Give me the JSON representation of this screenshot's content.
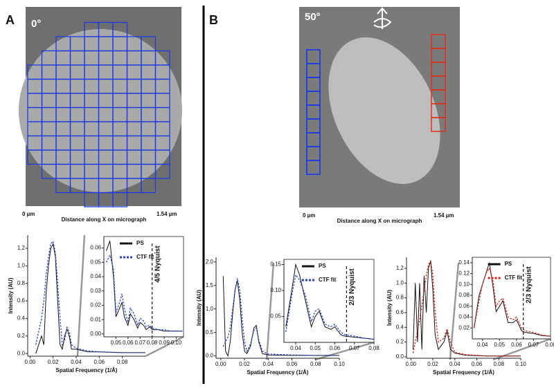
{
  "panels": [
    {
      "label": "A",
      "angle": "0°",
      "x_start": "0 µm",
      "x_end": "1.54 µm",
      "x_label": "Distance along X on micrograph"
    },
    {
      "label": "B",
      "angle": "50°",
      "x_start": "0 µm",
      "x_end": "1.54 µm",
      "x_label": "Distance along X on micrograph"
    }
  ],
  "chart_data": [
    {
      "type": "line",
      "xlabel": "Spatial Frequency (1/Å)",
      "ylabel": "Intensity (AU)",
      "x": [
        0.005,
        0.01,
        0.012,
        0.014,
        0.016,
        0.018,
        0.02,
        0.022,
        0.024,
        0.026,
        0.028,
        0.03,
        0.032,
        0.034,
        0.036,
        0.04,
        0.05,
        0.06,
        0.08,
        0.1
      ],
      "series": [
        {
          "color": "#111111",
          "dash": "solid",
          "values": [
            0,
            0.2,
            0.1,
            0.7,
            1.0,
            1.2,
            1.25,
            1.1,
            0.6,
            0.1,
            0.05,
            0.2,
            0.28,
            0.2,
            0.05,
            0.05,
            0.02,
            0.02,
            0.01,
            0.01
          ]
        },
        {
          "color": "#2a3fd4",
          "dash": "dotted",
          "values": [
            0.1,
            0.4,
            0.6,
            0.9,
            1.1,
            1.25,
            1.28,
            1.15,
            0.8,
            0.4,
            0.1,
            0.15,
            0.3,
            0.25,
            0.1,
            0.06,
            0.03,
            0.02,
            0.01,
            0.01
          ]
        }
      ],
      "xlim": [
        -0.002,
        0.1
      ],
      "xticks": [
        {
          "value": 0,
          "label": "0.00"
        },
        0.02,
        0.04,
        0.06,
        0.08
      ],
      "ylim": [
        -0.03,
        1.35
      ],
      "yticks": [
        {
          "value": 0,
          "label": "0.0"
        },
        0.2,
        0.4,
        0.6,
        0.8,
        {
          "value": 1,
          "label": "1.0"
        },
        1.2
      ]
    },
    {
      "type": "line",
      "inset": true,
      "x": [
        0.042,
        0.045,
        0.048,
        0.05,
        0.053,
        0.055,
        0.057,
        0.06,
        0.062,
        0.065,
        0.068,
        0.07,
        0.073,
        0.075,
        0.078,
        0.08,
        0.085,
        0.09,
        0.095,
        0.1,
        0.105
      ],
      "series": [
        {
          "name": "PS",
          "color": "#111111",
          "dash": "solid",
          "values": [
            0.058,
            0.065,
            0.04,
            0.012,
            0.018,
            0.022,
            0.012,
            0.006,
            0.014,
            0.01,
            0.004,
            0.008,
            0.006,
            0.003,
            0.005,
            0.003,
            0.003,
            0.002,
            0.002,
            0.002,
            0.002
          ]
        },
        {
          "name": "CTF fit",
          "color": "#2a3fd4",
          "dash": "dotted",
          "values": [
            0.05,
            0.055,
            0.045,
            0.015,
            0.022,
            0.028,
            0.018,
            0.008,
            0.018,
            0.014,
            0.006,
            0.011,
            0.009,
            0.005,
            0.006,
            0.004,
            0.003,
            0.003,
            0.002,
            0.002,
            0.002
          ]
        }
      ],
      "xlim": [
        0.04,
        0.106
      ],
      "xticks": [
        0.05,
        0.06,
        0.07,
        0.08,
        0.09,
        {
          "value": 0.1,
          "label": "0.10"
        }
      ],
      "ylim": [
        -0.002,
        0.068
      ],
      "yticks": [
        {
          "value": 0,
          "label": "0.00"
        },
        0.01,
        0.02,
        0.03,
        0.04,
        0.05,
        0.06
      ],
      "vline": {
        "value": 0.08,
        "label": "4/5 Nyquist"
      }
    },
    {
      "type": "line",
      "xlabel": "Spatial Frequency (1/Å)",
      "ylabel": "Intensity (AU)",
      "x": [
        0.002,
        0.004,
        0.006,
        0.008,
        0.01,
        0.012,
        0.014,
        0.016,
        0.018,
        0.02,
        0.022,
        0.025,
        0.028,
        0.03,
        0.032,
        0.035,
        0.04,
        0.06,
        0.08,
        0.1
      ],
      "series": [
        {
          "color": "#111111",
          "dash": "solid",
          "values": [
            1.7,
            0.1,
            0,
            0.3,
            0.9,
            1.4,
            1.6,
            1.2,
            0.5,
            0.1,
            0.05,
            0.2,
            0.6,
            0.65,
            0.3,
            0.05,
            0.02,
            0.01,
            0.01,
            0.01
          ]
        },
        {
          "color": "#2a3fd4",
          "dash": "dotted",
          "values": [
            0.2,
            0.3,
            0.4,
            0.6,
            1.0,
            1.4,
            1.65,
            1.4,
            0.8,
            0.3,
            0.1,
            0.25,
            0.55,
            0.6,
            0.35,
            0.1,
            0.04,
            0.02,
            0.01,
            0.01
          ]
        }
      ],
      "xlim": [
        -0.004,
        0.1
      ],
      "xticks": [
        {
          "value": 0,
          "label": "0.00"
        },
        0.02,
        0.04,
        0.06,
        0.08,
        {
          "value": 0.1,
          "label": "0.10"
        }
      ],
      "ylim": [
        -0.05,
        2.1
      ],
      "yticks": [
        {
          "value": 0,
          "label": "0.0"
        },
        0.5,
        {
          "value": 1,
          "label": "1.0"
        },
        1.5,
        {
          "value": 2,
          "label": "2.0"
        }
      ]
    },
    {
      "type": "line",
      "inset": true,
      "x": [
        0.035,
        0.038,
        0.04,
        0.042,
        0.045,
        0.048,
        0.05,
        0.052,
        0.055,
        0.058,
        0.06,
        0.063,
        0.065,
        0.07,
        0.075,
        0.08
      ],
      "series": [
        {
          "name": "PS",
          "color": "#111111",
          "dash": "solid",
          "values": [
            0.03,
            0.1,
            0.15,
            0.13,
            0.08,
            0.03,
            0.05,
            0.06,
            0.03,
            0.025,
            0.03,
            0.015,
            0.012,
            0.01,
            0.008,
            0.006
          ]
        },
        {
          "name": "CTF fit",
          "color": "#2a3fd4",
          "dash": "dotted",
          "values": [
            0.02,
            0.09,
            0.13,
            0.12,
            0.09,
            0.04,
            0.06,
            0.065,
            0.035,
            0.03,
            0.035,
            0.02,
            0.015,
            0.012,
            0.008,
            0.006
          ]
        }
      ],
      "xlim": [
        0.034,
        0.08
      ],
      "xticks": [
        0.04,
        0.05,
        0.06,
        0.07,
        0.08
      ],
      "ylim": [
        0,
        0.16
      ],
      "yticks": [
        0.05,
        {
          "value": 0.1,
          "label": "0.10"
        },
        0.15
      ],
      "vline": {
        "value": 0.066,
        "label": "2/3 Nyquist"
      }
    },
    {
      "type": "line",
      "xlabel": "Spatial Frequency (1/Å)",
      "ylabel": "Intensity (AU)",
      "x": [
        0.002,
        0.004,
        0.006,
        0.008,
        0.01,
        0.012,
        0.014,
        0.016,
        0.018,
        0.02,
        0.022,
        0.025,
        0.03,
        0.033,
        0.036,
        0.04,
        0.05,
        0.07,
        0.1
      ],
      "series": [
        {
          "color": "#111111",
          "dash": "solid",
          "values": [
            0.1,
            1.0,
            0.2,
            1.0,
            0.1,
            1.1,
            0.6,
            1.2,
            1.3,
            0.9,
            0.3,
            0.1,
            0.2,
            0.35,
            0.1,
            0.05,
            0.02,
            0.01,
            0.01
          ]
        },
        {
          "color": "#e0201b",
          "dash": "dotted",
          "values": [
            0.05,
            0.2,
            0.35,
            0.5,
            0.7,
            0.9,
            1.1,
            1.25,
            1.3,
            1.1,
            0.6,
            0.2,
            0.25,
            0.38,
            0.2,
            0.06,
            0.03,
            0.01,
            0.01
          ]
        }
      ],
      "xlim": [
        -0.004,
        0.1
      ],
      "xticks": [
        {
          "value": 0,
          "label": "0.00"
        },
        0.02,
        0.04,
        0.06,
        0.08,
        {
          "value": 0.1,
          "label": "0.10"
        }
      ],
      "ylim": [
        -0.02,
        1.35
      ],
      "yticks": [
        {
          "value": 0,
          "label": "0.0"
        },
        0.2,
        0.4,
        0.6,
        0.8,
        {
          "value": 1,
          "label": "1.0"
        },
        1.2
      ]
    },
    {
      "type": "line",
      "inset": true,
      "x": [
        0.035,
        0.038,
        0.04,
        0.042,
        0.044,
        0.046,
        0.048,
        0.05,
        0.052,
        0.055,
        0.058,
        0.06,
        0.063,
        0.065,
        0.07,
        0.075,
        0.08
      ],
      "series": [
        {
          "name": "PS",
          "color": "#111111",
          "dash": "solid",
          "values": [
            0.02,
            0.08,
            0.1,
            0.12,
            0.14,
            0.1,
            0.05,
            0.06,
            0.07,
            0.03,
            0.03,
            0.035,
            0.015,
            0.012,
            0.01,
            0.006,
            0.005
          ]
        },
        {
          "name": "CTF fit",
          "color": "#e0201b",
          "dash": "dotted",
          "values": [
            0.02,
            0.07,
            0.1,
            0.12,
            0.13,
            0.11,
            0.06,
            0.07,
            0.075,
            0.04,
            0.035,
            0.04,
            0.02,
            0.015,
            0.012,
            0.007,
            0.005
          ]
        }
      ],
      "xlim": [
        0.034,
        0.08
      ],
      "xticks": [
        0.04,
        0.05,
        0.06,
        0.07,
        0.08
      ],
      "ylim": [
        0,
        0.15
      ],
      "yticks": [
        0.02,
        0.04,
        0.06,
        0.08,
        {
          "value": 0.1,
          "label": "0.10"
        },
        0.12,
        0.14
      ],
      "vline": {
        "value": 0.064,
        "label": "2/3 Nyquist"
      }
    }
  ]
}
